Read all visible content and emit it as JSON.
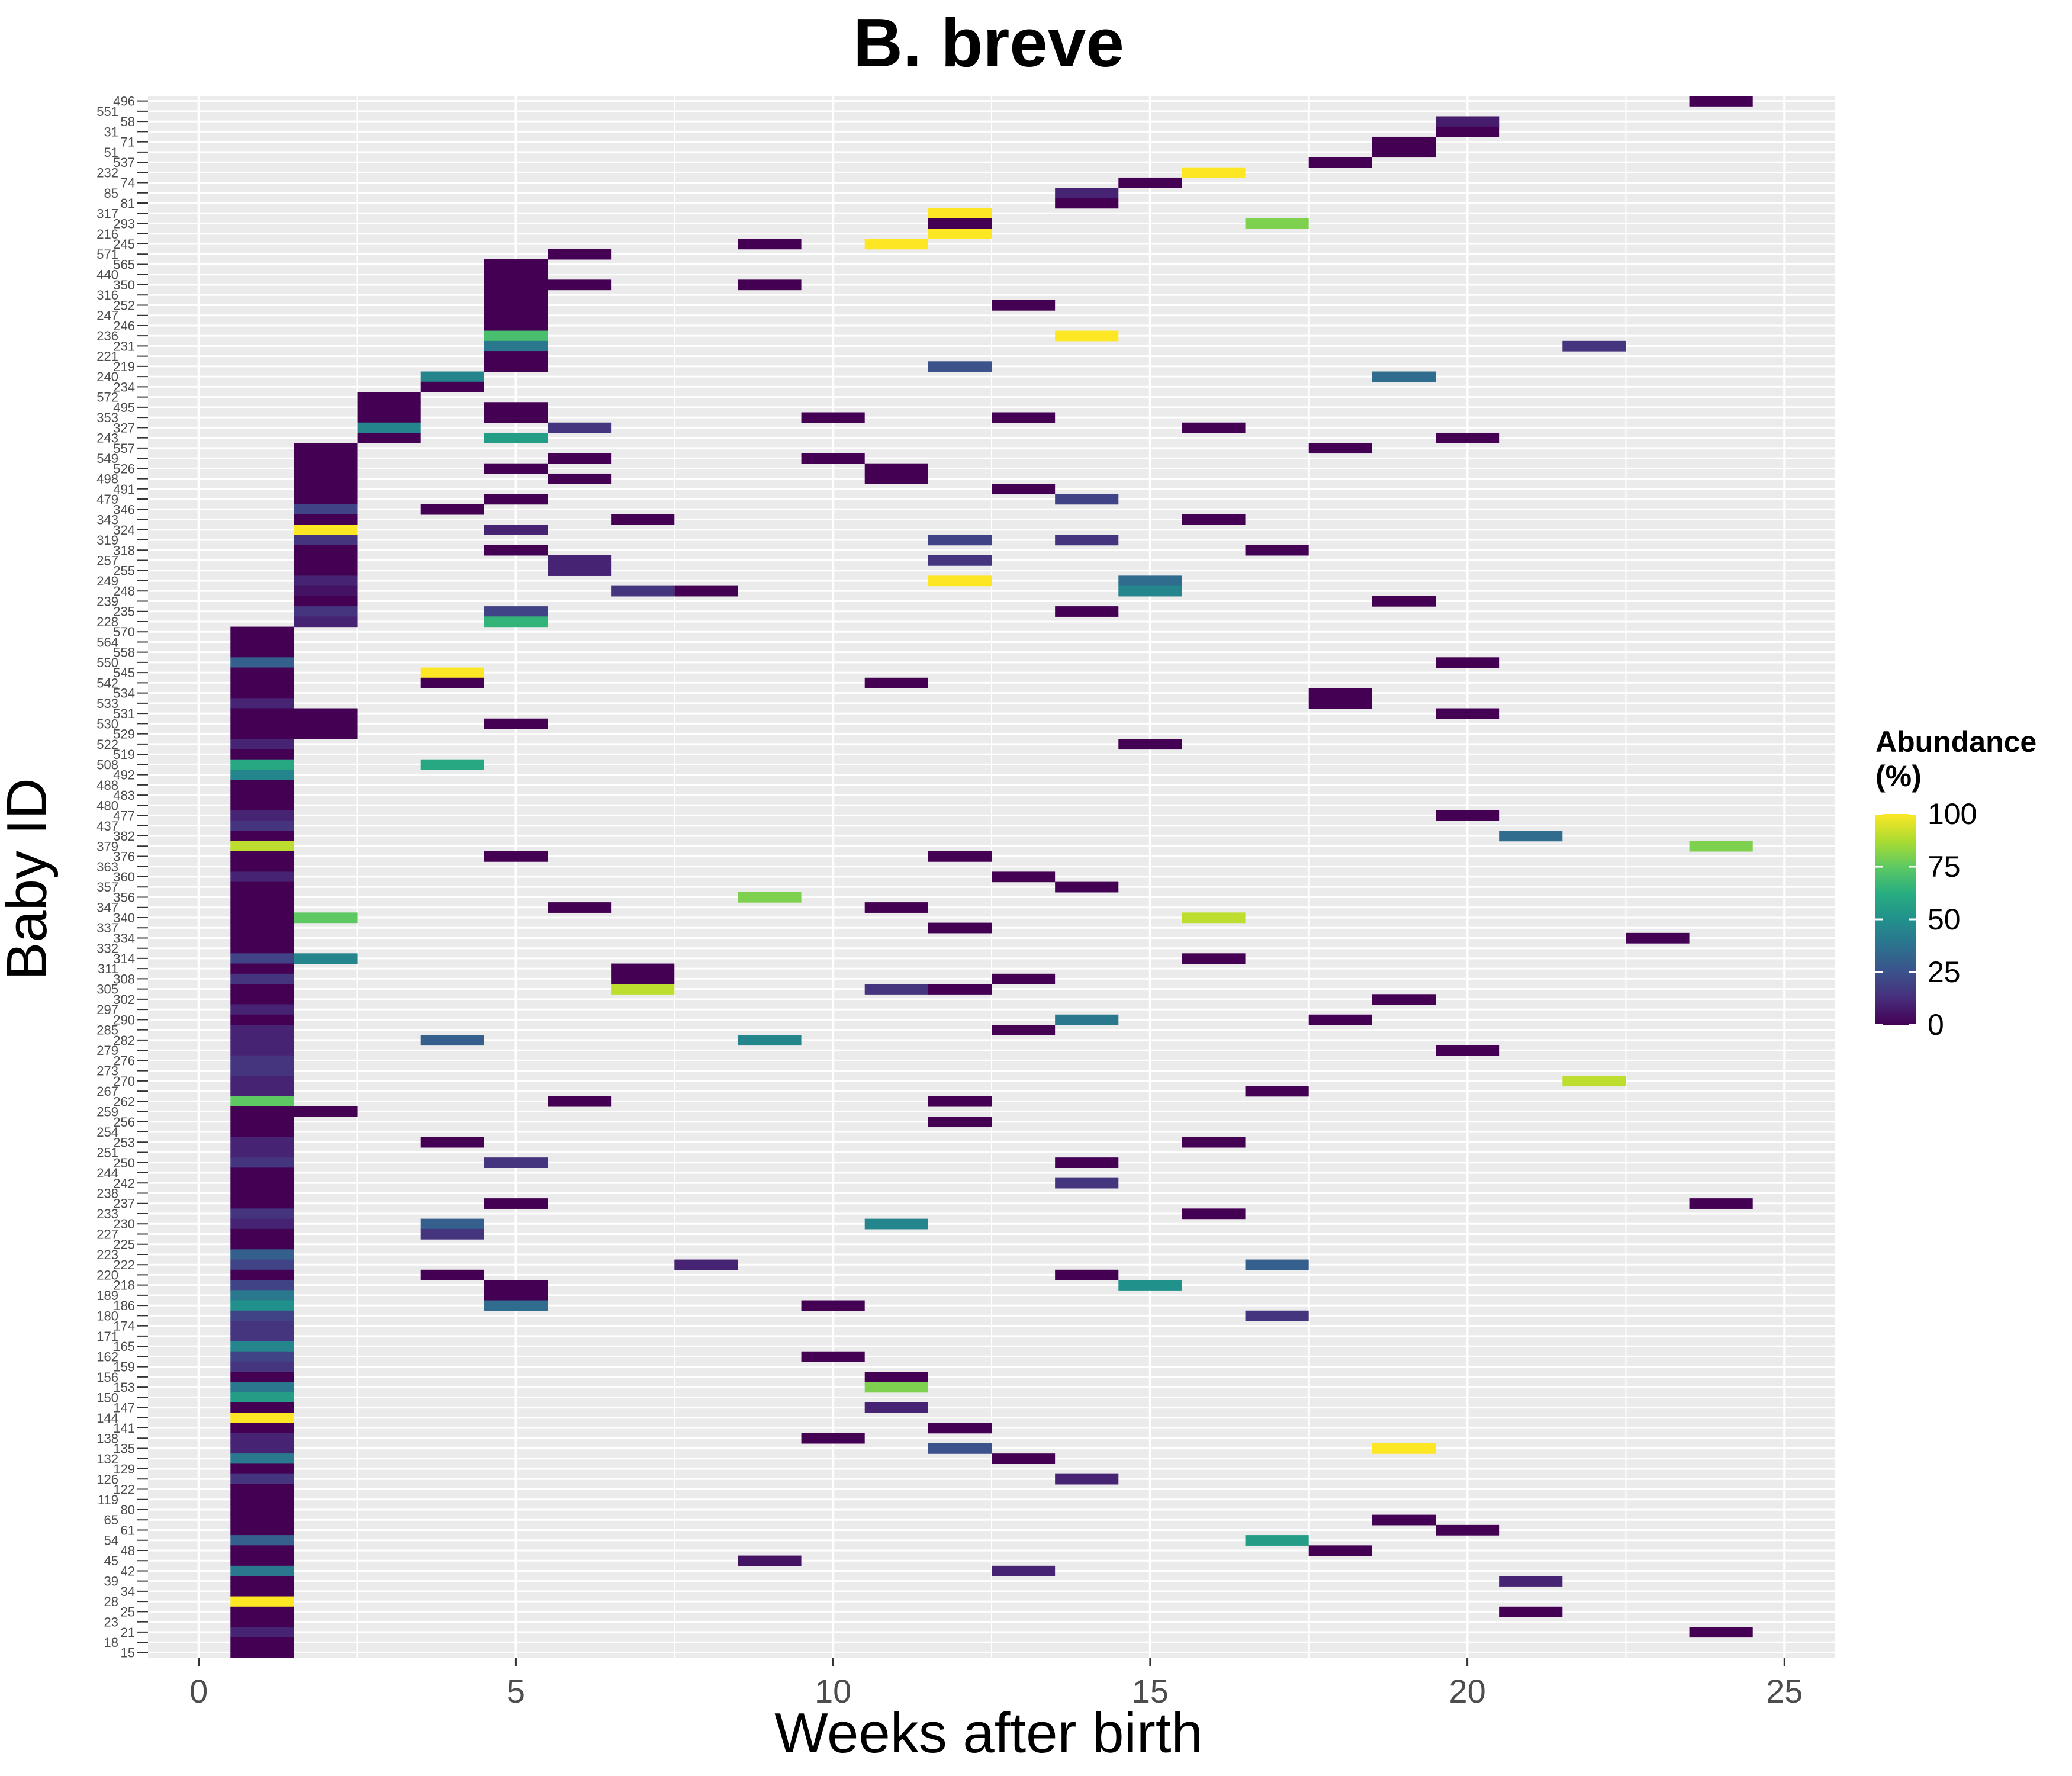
{
  "chart_data": {
    "type": "heatmap",
    "title": "B. breve",
    "xlabel": "Weeks after birth",
    "ylabel": "Baby ID",
    "xlim": [
      -0.8,
      25.8
    ],
    "x_ticks": [
      0,
      5,
      10,
      15,
      20,
      25
    ],
    "grid": true,
    "legend": {
      "title": "Abundance\n(%)",
      "placement": "right",
      "ticks": [
        0,
        25,
        50,
        75,
        100
      ],
      "range": [
        0,
        100
      ],
      "palette": "viridis"
    },
    "baby_ids": [
      "15",
      "18",
      "21",
      "23",
      "25",
      "28",
      "34",
      "39",
      "42",
      "45",
      "48",
      "54",
      "61",
      "65",
      "80",
      "119",
      "122",
      "126",
      "129",
      "132",
      "135",
      "138",
      "141",
      "144",
      "147",
      "150",
      "153",
      "156",
      "159",
      "162",
      "165",
      "171",
      "174",
      "180",
      "186",
      "189",
      "218",
      "220",
      "222",
      "223",
      "225",
      "227",
      "230",
      "233",
      "237",
      "238",
      "242",
      "244",
      "250",
      "251",
      "253",
      "254",
      "256",
      "259",
      "262",
      "267",
      "270",
      "273",
      "276",
      "279",
      "282",
      "285",
      "290",
      "297",
      "302",
      "305",
      "308",
      "311",
      "314",
      "332",
      "334",
      "337",
      "340",
      "347",
      "356",
      "357",
      "360",
      "363",
      "376",
      "379",
      "382",
      "437",
      "477",
      "480",
      "483",
      "488",
      "492",
      "508",
      "519",
      "522",
      "529",
      "530",
      "531",
      "533",
      "534",
      "542",
      "545",
      "550",
      "558",
      "564",
      "570",
      "228",
      "235",
      "239",
      "248",
      "249",
      "255",
      "257",
      "318",
      "319",
      "324",
      "343",
      "346",
      "479",
      "491",
      "498",
      "526",
      "549",
      "557",
      "243",
      "327",
      "353",
      "495",
      "572",
      "234",
      "240",
      "219",
      "221",
      "231",
      "236",
      "246",
      "247",
      "252",
      "316",
      "350",
      "440",
      "565",
      "571",
      "245",
      "216",
      "293",
      "317",
      "81",
      "85",
      "74",
      "232",
      "537",
      "51",
      "71",
      "31",
      "58",
      "551",
      "496"
    ],
    "cells": [
      [
        496,
        24,
        0
      ],
      [
        58,
        20,
        0
      ],
      [
        58,
        20,
        8
      ],
      [
        31,
        20,
        0
      ],
      [
        71,
        19,
        0
      ],
      [
        51,
        19,
        0
      ],
      [
        537,
        18,
        0
      ],
      [
        232,
        16,
        100
      ],
      [
        74,
        15,
        0
      ],
      [
        85,
        14,
        10
      ],
      [
        81,
        14,
        0
      ],
      [
        317,
        12,
        100
      ],
      [
        293,
        12,
        0
      ],
      [
        293,
        17,
        80
      ],
      [
        216,
        12,
        100
      ],
      [
        245,
        9,
        0
      ],
      [
        245,
        11,
        100
      ],
      [
        571,
        6,
        0
      ],
      [
        565,
        5,
        0
      ],
      [
        440,
        5,
        0
      ],
      [
        350,
        5,
        0
      ],
      [
        350,
        6,
        0
      ],
      [
        350,
        9,
        0
      ],
      [
        316,
        5,
        0
      ],
      [
        252,
        5,
        0
      ],
      [
        252,
        13,
        0
      ],
      [
        247,
        5,
        0
      ],
      [
        246,
        5,
        0
      ],
      [
        236,
        5,
        70
      ],
      [
        236,
        14,
        100
      ],
      [
        231,
        5,
        40
      ],
      [
        231,
        22,
        15
      ],
      [
        221,
        5,
        0
      ],
      [
        219,
        5,
        0
      ],
      [
        219,
        12,
        25
      ],
      [
        240,
        4,
        45
      ],
      [
        240,
        19,
        35
      ],
      [
        234,
        4,
        0
      ],
      [
        572,
        3,
        0
      ],
      [
        495,
        3,
        0
      ],
      [
        495,
        5,
        0
      ],
      [
        353,
        3,
        0
      ],
      [
        353,
        5,
        0
      ],
      [
        353,
        10,
        0
      ],
      [
        353,
        13,
        0
      ],
      [
        327,
        3,
        45
      ],
      [
        327,
        6,
        15
      ],
      [
        327,
        16,
        0
      ],
      [
        243,
        3,
        0
      ],
      [
        243,
        5,
        55
      ],
      [
        243,
        20,
        0
      ],
      [
        557,
        2,
        0
      ],
      [
        557,
        18,
        0
      ],
      [
        549,
        2,
        0
      ],
      [
        549,
        6,
        0
      ],
      [
        549,
        10,
        0
      ],
      [
        526,
        2,
        0
      ],
      [
        526,
        5,
        0
      ],
      [
        526,
        11,
        0
      ],
      [
        498,
        2,
        0
      ],
      [
        498,
        6,
        0
      ],
      [
        498,
        11,
        0
      ],
      [
        491,
        2,
        0
      ],
      [
        491,
        13,
        0
      ],
      [
        479,
        2,
        0
      ],
      [
        479,
        5,
        0
      ],
      [
        479,
        14,
        20
      ],
      [
        346,
        2,
        20
      ],
      [
        346,
        4,
        0
      ],
      [
        343,
        2,
        0
      ],
      [
        343,
        7,
        0
      ],
      [
        343,
        16,
        0
      ],
      [
        324,
        2,
        100
      ],
      [
        324,
        5,
        10
      ],
      [
        319,
        2,
        15
      ],
      [
        319,
        12,
        20
      ],
      [
        319,
        14,
        15
      ],
      [
        318,
        2,
        0
      ],
      [
        318,
        5,
        0
      ],
      [
        318,
        17,
        0
      ],
      [
        257,
        2,
        0
      ],
      [
        257,
        6,
        10
      ],
      [
        257,
        12,
        15
      ],
      [
        255,
        2,
        0
      ],
      [
        255,
        6,
        10
      ],
      [
        249,
        2,
        10
      ],
      [
        249,
        12,
        100
      ],
      [
        249,
        15,
        35
      ],
      [
        248,
        2,
        5
      ],
      [
        248,
        7,
        15
      ],
      [
        248,
        8,
        0
      ],
      [
        248,
        15,
        45
      ],
      [
        239,
        2,
        0
      ],
      [
        239,
        19,
        0
      ],
      [
        235,
        2,
        15
      ],
      [
        235,
        5,
        20
      ],
      [
        235,
        14,
        0
      ],
      [
        228,
        2,
        10
      ],
      [
        228,
        5,
        65
      ],
      [
        570,
        1,
        0
      ],
      [
        564,
        1,
        0
      ],
      [
        558,
        1,
        0
      ],
      [
        550,
        1,
        30
      ],
      [
        550,
        20,
        0
      ],
      [
        545,
        1,
        0
      ],
      [
        545,
        4,
        100
      ],
      [
        542,
        1,
        0
      ],
      [
        542,
        4,
        0
      ],
      [
        542,
        11,
        0
      ],
      [
        534,
        1,
        0
      ],
      [
        534,
        18,
        0
      ],
      [
        533,
        1,
        10
      ],
      [
        533,
        18,
        0
      ],
      [
        531,
        1,
        0
      ],
      [
        531,
        2,
        0
      ],
      [
        531,
        20,
        0
      ],
      [
        530,
        1,
        0
      ],
      [
        530,
        2,
        0
      ],
      [
        530,
        5,
        0
      ],
      [
        529,
        1,
        0
      ],
      [
        529,
        2,
        0
      ],
      [
        522,
        1,
        10
      ],
      [
        522,
        15,
        0
      ],
      [
        519,
        1,
        0
      ],
      [
        508,
        1,
        60
      ],
      [
        508,
        4,
        60
      ],
      [
        492,
        1,
        45
      ],
      [
        488,
        1,
        0
      ],
      [
        483,
        1,
        0
      ],
      [
        480,
        1,
        0
      ],
      [
        477,
        1,
        10
      ],
      [
        477,
        20,
        0
      ],
      [
        437,
        1,
        15
      ],
      [
        382,
        1,
        0
      ],
      [
        382,
        21,
        35
      ],
      [
        379,
        1,
        90
      ],
      [
        379,
        24,
        80
      ],
      [
        376,
        1,
        0
      ],
      [
        376,
        5,
        0
      ],
      [
        376,
        12,
        0
      ],
      [
        363,
        1,
        0
      ],
      [
        360,
        1,
        10
      ],
      [
        360,
        13,
        0
      ],
      [
        357,
        1,
        0
      ],
      [
        357,
        14,
        0
      ],
      [
        356,
        1,
        0
      ],
      [
        356,
        9,
        80
      ],
      [
        347,
        1,
        0
      ],
      [
        347,
        6,
        0
      ],
      [
        347,
        11,
        0
      ],
      [
        340,
        1,
        0
      ],
      [
        340,
        2,
        75
      ],
      [
        340,
        16,
        90
      ],
      [
        337,
        1,
        0
      ],
      [
        337,
        12,
        0
      ],
      [
        334,
        1,
        0
      ],
      [
        334,
        23,
        0
      ],
      [
        332,
        1,
        0
      ],
      [
        314,
        1,
        20
      ],
      [
        314,
        2,
        45
      ],
      [
        314,
        16,
        0
      ],
      [
        311,
        1,
        0
      ],
      [
        311,
        7,
        0
      ],
      [
        308,
        1,
        15
      ],
      [
        308,
        7,
        0
      ],
      [
        308,
        13,
        0
      ],
      [
        305,
        1,
        0
      ],
      [
        305,
        7,
        90
      ],
      [
        305,
        11,
        15
      ],
      [
        305,
        12,
        0
      ],
      [
        302,
        1,
        0
      ],
      [
        302,
        19,
        0
      ],
      [
        297,
        1,
        10
      ],
      [
        290,
        1,
        0
      ],
      [
        290,
        14,
        40
      ],
      [
        290,
        18,
        0
      ],
      [
        285,
        1,
        10
      ],
      [
        285,
        13,
        0
      ],
      [
        282,
        1,
        10
      ],
      [
        282,
        4,
        30
      ],
      [
        282,
        9,
        45
      ],
      [
        279,
        1,
        10
      ],
      [
        279,
        20,
        0
      ],
      [
        276,
        1,
        15
      ],
      [
        273,
        1,
        15
      ],
      [
        270,
        1,
        10
      ],
      [
        270,
        22,
        90
      ],
      [
        267,
        1,
        10
      ],
      [
        267,
        17,
        0
      ],
      [
        262,
        1,
        75
      ],
      [
        262,
        6,
        0
      ],
      [
        262,
        12,
        0
      ],
      [
        259,
        1,
        0
      ],
      [
        259,
        2,
        0
      ],
      [
        256,
        1,
        0
      ],
      [
        256,
        12,
        0
      ],
      [
        254,
        1,
        0
      ],
      [
        253,
        1,
        10
      ],
      [
        253,
        4,
        0
      ],
      [
        253,
        16,
        0
      ],
      [
        251,
        1,
        10
      ],
      [
        250,
        1,
        15
      ],
      [
        250,
        5,
        15
      ],
      [
        250,
        14,
        0
      ],
      [
        244,
        1,
        0
      ],
      [
        242,
        1,
        0
      ],
      [
        242,
        14,
        15
      ],
      [
        238,
        1,
        0
      ],
      [
        237,
        1,
        0
      ],
      [
        237,
        5,
        0
      ],
      [
        237,
        24,
        0
      ],
      [
        233,
        1,
        15
      ],
      [
        233,
        16,
        0
      ],
      [
        230,
        1,
        10
      ],
      [
        230,
        4,
        30
      ],
      [
        230,
        11,
        45
      ],
      [
        227,
        1,
        0
      ],
      [
        227,
        4,
        15
      ],
      [
        225,
        1,
        0
      ],
      [
        223,
        1,
        30
      ],
      [
        222,
        1,
        20
      ],
      [
        222,
        8,
        10
      ],
      [
        222,
        17,
        30
      ],
      [
        220,
        1,
        0
      ],
      [
        220,
        4,
        0
      ],
      [
        220,
        14,
        0
      ],
      [
        218,
        1,
        20
      ],
      [
        218,
        5,
        0
      ],
      [
        218,
        15,
        50
      ],
      [
        189,
        1,
        40
      ],
      [
        189,
        5,
        0
      ],
      [
        186,
        1,
        50
      ],
      [
        186,
        5,
        35
      ],
      [
        186,
        10,
        0
      ],
      [
        180,
        1,
        20
      ],
      [
        180,
        17,
        15
      ],
      [
        174,
        1,
        15
      ],
      [
        171,
        1,
        15
      ],
      [
        165,
        1,
        45
      ],
      [
        162,
        1,
        20
      ],
      [
        162,
        10,
        0
      ],
      [
        159,
        1,
        15
      ],
      [
        156,
        1,
        0
      ],
      [
        156,
        11,
        0
      ],
      [
        153,
        1,
        40
      ],
      [
        153,
        11,
        80
      ],
      [
        150,
        1,
        55
      ],
      [
        147,
        1,
        0
      ],
      [
        147,
        11,
        10
      ],
      [
        144,
        1,
        100
      ],
      [
        141,
        1,
        0
      ],
      [
        141,
        12,
        0
      ],
      [
        138,
        1,
        10
      ],
      [
        138,
        10,
        0
      ],
      [
        135,
        1,
        10
      ],
      [
        135,
        12,
        25
      ],
      [
        135,
        19,
        100
      ],
      [
        132,
        1,
        40
      ],
      [
        132,
        13,
        0
      ],
      [
        129,
        1,
        0
      ],
      [
        126,
        1,
        15
      ],
      [
        126,
        14,
        10
      ],
      [
        122,
        1,
        0
      ],
      [
        119,
        1,
        0
      ],
      [
        80,
        1,
        0
      ],
      [
        65,
        1,
        0
      ],
      [
        65,
        19,
        0
      ],
      [
        61,
        1,
        0
      ],
      [
        61,
        20,
        0
      ],
      [
        54,
        1,
        30
      ],
      [
        54,
        17,
        55
      ],
      [
        48,
        1,
        0
      ],
      [
        48,
        18,
        0
      ],
      [
        45,
        1,
        0
      ],
      [
        45,
        9,
        5
      ],
      [
        42,
        1,
        40
      ],
      [
        42,
        13,
        10
      ],
      [
        39,
        1,
        0
      ],
      [
        39,
        21,
        10
      ],
      [
        34,
        1,
        0
      ],
      [
        28,
        1,
        100
      ],
      [
        25,
        1,
        0
      ],
      [
        25,
        21,
        0
      ],
      [
        23,
        1,
        0
      ],
      [
        21,
        1,
        10
      ],
      [
        21,
        24,
        0
      ],
      [
        18,
        1,
        0
      ],
      [
        15,
        1,
        0
      ]
    ]
  }
}
